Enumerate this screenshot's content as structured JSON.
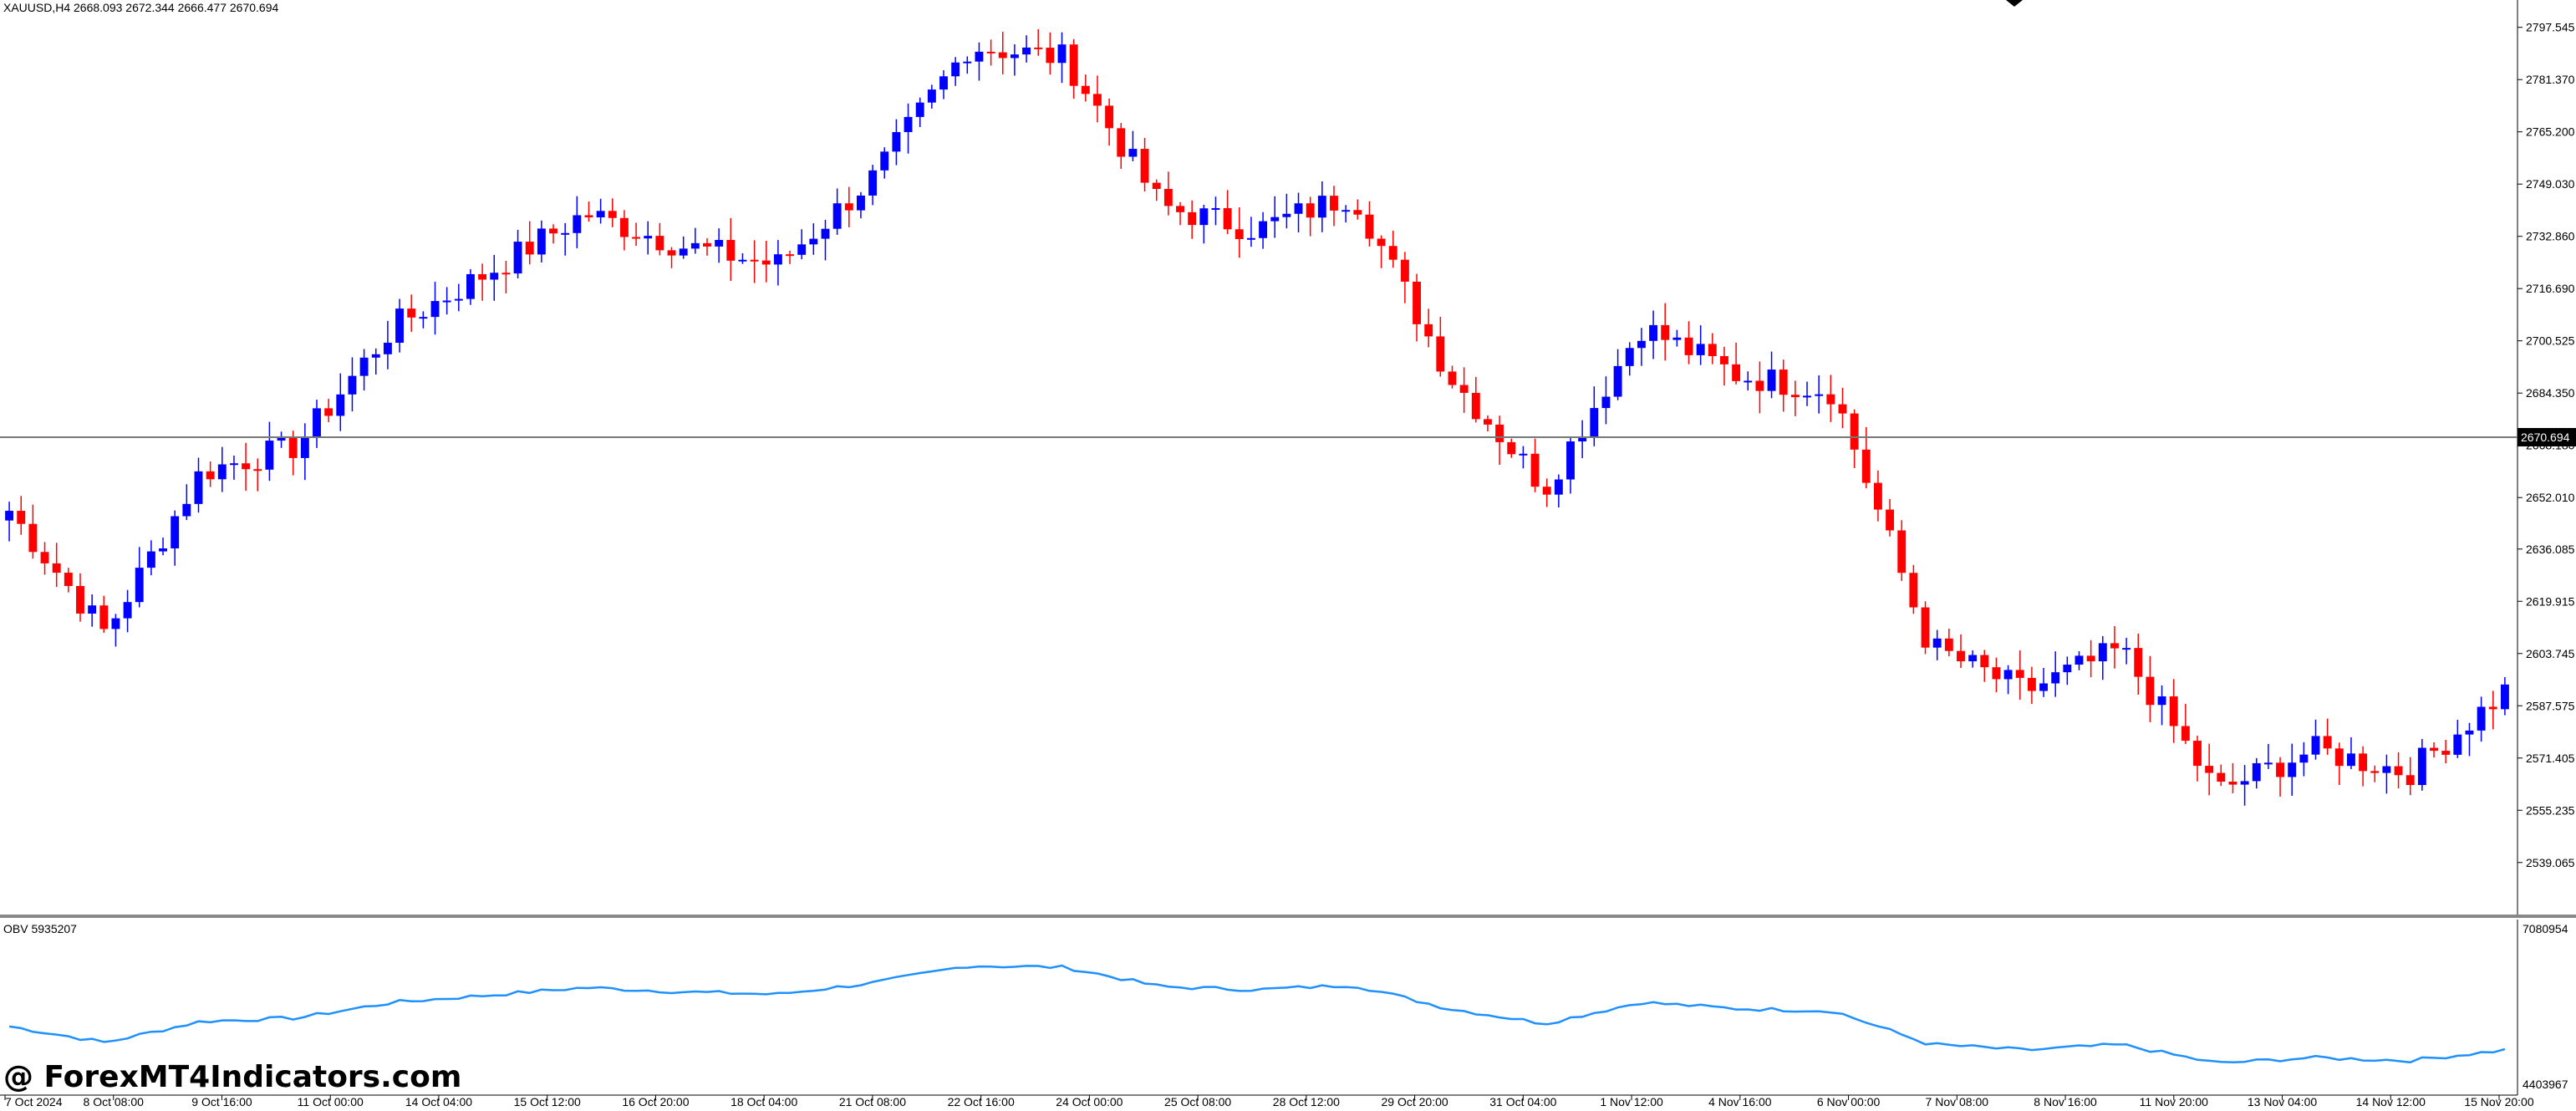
{
  "chart_data": [
    {
      "type": "candlestick",
      "symbol_header": "XAUUSD,H4  2668.093 2672.344 2666.477 2670.694",
      "current_price_label": "2670.694",
      "current_price": 2670.694,
      "ylim": [
        2524,
        2806
      ],
      "y_ticks": [
        "2797.545",
        "2781.370",
        "2765.200",
        "2749.030",
        "2732.860",
        "2716.690",
        "2700.525",
        "2684.350",
        "2668.180",
        "2652.010",
        "2636.085",
        "2619.915",
        "2603.745",
        "2587.575",
        "2571.405",
        "2555.235",
        "2539.065"
      ],
      "x_ticks": [
        "7 Oct 2024",
        "8 Oct 08:00",
        "9 Oct 16:00",
        "11 Oct 00:00",
        "14 Oct 04:00",
        "15 Oct 12:00",
        "16 Oct 20:00",
        "18 Oct 04:00",
        "21 Oct 08:00",
        "22 Oct 16:00",
        "24 Oct 00:00",
        "25 Oct 08:00",
        "28 Oct 12:00",
        "29 Oct 20:00",
        "31 Oct 04:00",
        "1 Nov 12:00",
        "4 Nov 16:00",
        "6 Nov 00:00",
        "7 Nov 08:00",
        "8 Nov 16:00",
        "11 Nov 20:00",
        "13 Nov 04:00",
        "14 Nov 12:00",
        "15 Nov 20:00"
      ],
      "colors": {
        "bull": "#0000ff",
        "bear": "#ff0000",
        "wick_bull": "#0000ff",
        "wick_bear": "#ff0000"
      },
      "key_closes": [
        2648,
        2610,
        2660,
        2668,
        2705,
        2722,
        2740,
        2730,
        2724,
        2751,
        2792,
        2788,
        2742,
        2735,
        2746,
        2690,
        2655,
        2705,
        2690,
        2685,
        2606,
        2592,
        2605,
        2561,
        2574,
        2567,
        2592
      ]
    },
    {
      "type": "line",
      "title": "OBV 5935207",
      "y_ticks": [
        "7080954",
        "4403967"
      ],
      "ylim": [
        4403967,
        7080954
      ],
      "series": [
        {
          "color": "#1e90ff"
        }
      ]
    }
  ],
  "watermark": "@ ForexMT4Indicators.com"
}
